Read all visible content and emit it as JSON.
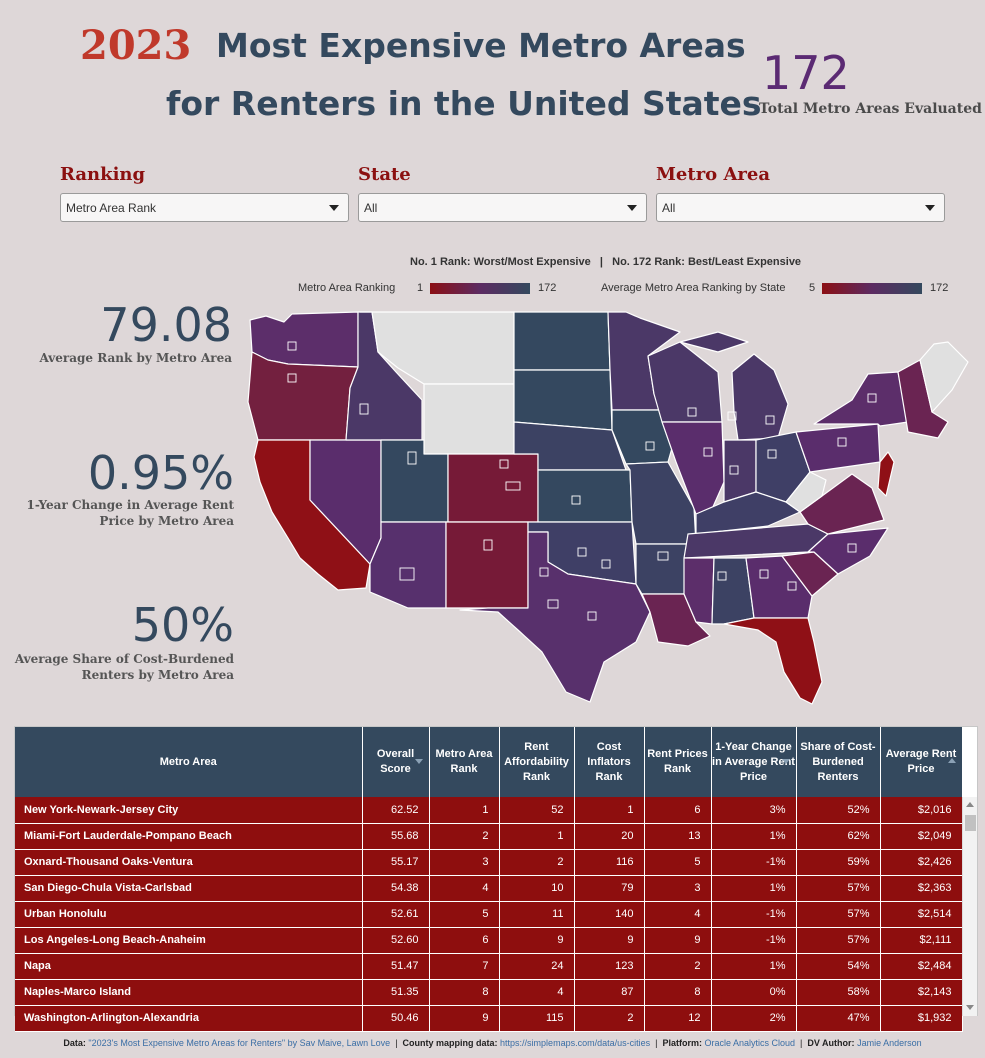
{
  "title": {
    "year": "2023",
    "line1": "Most Expensive Metro Areas",
    "line2": "for Renters in the United States"
  },
  "total": {
    "value": "172",
    "label": "Total Metro Areas Evaluated"
  },
  "filters": [
    {
      "label": "Ranking",
      "value": "Metro Area Rank"
    },
    {
      "label": "State",
      "value": "All"
    },
    {
      "label": "Metro Area",
      "value": "All"
    }
  ],
  "legend": {
    "note": "No. 1 Rank: Worst/Most Expensive   |   No. 172 Rank: Best/Least Expensive",
    "metro": {
      "label": "Metro Area Ranking",
      "min": "1",
      "max": "172"
    },
    "state": {
      "label": "Average Metro Area Ranking by State",
      "min": "5",
      "max": "172"
    },
    "colors": {
      "worst": "#8b0f14",
      "mid": "#5c2b62",
      "best": "#34495e",
      "no_data": "#e0e0e0"
    }
  },
  "kpis": [
    {
      "value": "79.08",
      "label": "Average Rank by Metro Area"
    },
    {
      "value": "0.95%",
      "label": "1-Year Change in Average Rent Price by Metro Area"
    },
    {
      "value": "50%",
      "label": "Average Share of Cost-Burdened Renters by Metro Area"
    }
  ],
  "table": {
    "columns": [
      "Metro Area",
      "Overall Score",
      "Metro Area Rank",
      "Rent Affordability Rank",
      "Cost Inflators Rank",
      "Rent Prices Rank",
      "1-Year Change in Average Rent Price",
      "Share of Cost-Burdened Renters",
      "Average Rent Price"
    ],
    "rows": [
      [
        "New York-Newark-Jersey City",
        "62.52",
        "1",
        "52",
        "1",
        "6",
        "3%",
        "52%",
        "$2,016"
      ],
      [
        "Miami-Fort Lauderdale-Pompano Beach",
        "55.68",
        "2",
        "1",
        "20",
        "13",
        "1%",
        "62%",
        "$2,049"
      ],
      [
        "Oxnard-Thousand Oaks-Ventura",
        "55.17",
        "3",
        "2",
        "116",
        "5",
        "-1%",
        "59%",
        "$2,426"
      ],
      [
        "San Diego-Chula Vista-Carlsbad",
        "54.38",
        "4",
        "10",
        "79",
        "3",
        "1%",
        "57%",
        "$2,363"
      ],
      [
        "Urban Honolulu",
        "52.61",
        "5",
        "11",
        "140",
        "4",
        "-1%",
        "57%",
        "$2,514"
      ],
      [
        "Los Angeles-Long Beach-Anaheim",
        "52.60",
        "6",
        "9",
        "9",
        "9",
        "-1%",
        "57%",
        "$2,111"
      ],
      [
        "Napa",
        "51.47",
        "7",
        "24",
        "123",
        "2",
        "1%",
        "54%",
        "$2,484"
      ],
      [
        "Naples-Marco Island",
        "51.35",
        "8",
        "4",
        "87",
        "8",
        "0%",
        "58%",
        "$2,143"
      ],
      [
        "Washington-Arlington-Alexandria",
        "50.46",
        "9",
        "115",
        "2",
        "12",
        "2%",
        "47%",
        "$1,932"
      ]
    ]
  },
  "footer": {
    "data_label": "Data:",
    "data_value": "\"2023's Most Expensive Metro Areas for Renters\" by Sav Maive, Lawn Love",
    "county_label": "County mapping data:",
    "county_value": "https://simplemaps.com/data/us-cities",
    "platform_label": "Platform:",
    "platform_value": "Oracle Analytics Cloud",
    "author_label": "DV Author:",
    "author_value": "Jamie Anderson"
  }
}
